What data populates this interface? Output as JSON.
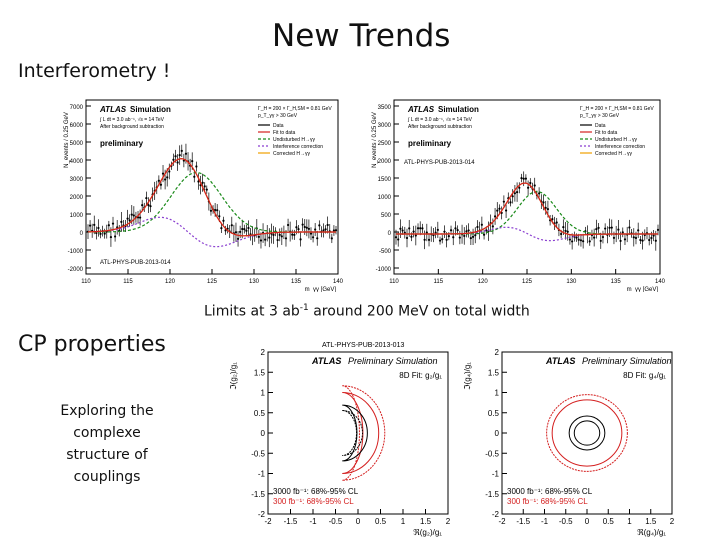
{
  "slide": {
    "title": "New Trends",
    "section1": "Interferometry !",
    "section2": "CP properties",
    "explore_lines": [
      "Exploring the",
      "complexe",
      "structure of",
      "couplings"
    ],
    "limits_pre": "Limits at 3 ab",
    "limits_sup": "-1",
    "limits_post": " around 200 MeV on total width"
  },
  "plots": {
    "common": {
      "atlas": "ATLAS",
      "simulation": "Simulation",
      "after_bg": "After background subtraction",
      "lumi": "∫ L dt = 3.0 ab⁻¹, √s = 14 TeV",
      "xlabel": "m_γγ [GeV]",
      "ylabel": "N_events / 0.25 GeV",
      "legend": [
        "Data",
        "Fit to data",
        "Undisturbed H→γγ",
        "Interference correction",
        "Corrected H→γγ"
      ]
    },
    "left": {
      "width_line": "Γ_H = 200 × Γ_H,SM = 0.81 GeV",
      "pt_line": "p_T_γγ > 30 GeV",
      "preliminary": "preliminary",
      "pub": "ATL-PHYS-PUB-2013-014",
      "yticks": [
        "7000",
        "6000",
        "5000",
        "4000",
        "3000",
        "2000",
        "1000",
        "0",
        "-1000",
        "-2000"
      ],
      "xticks": [
        "110",
        "115",
        "120",
        "125",
        "130",
        "135",
        "140"
      ]
    },
    "right": {
      "width_line": "Γ_H = 200 × Γ_H,SM = 0.81 GeV",
      "pt_line": "p_T_γγ > 30 GeV",
      "preliminary": "preliminary",
      "pub": "ATL-PHYS-PUB-2013-014",
      "yticks": [
        "3500",
        "3000",
        "2500",
        "2000",
        "1500",
        "1000",
        "500",
        "0",
        "-500",
        "-1000"
      ],
      "xticks": [
        "110",
        "115",
        "120",
        "125",
        "130",
        "135",
        "140"
      ]
    },
    "cp_left": {
      "header": "ATL-PHYS-PUB-2013-013",
      "atlas": "ATLAS",
      "sub": "Preliminary Simulation",
      "fit": "8D Fit: g₂/g₁",
      "ylabel": "ℑ(g₂)/g₁",
      "xlabel": "ℜ(g₂)/g₁",
      "leg1": "3000 fb⁻¹: 68%-95% CL",
      "leg2": "300 fb⁻¹: 68%-95% CL",
      "ticks": [
        "2",
        "1.5",
        "1",
        "0.5",
        "0",
        "-0.5",
        "-1",
        "-1.5",
        "-2"
      ],
      "xticks": [
        "-2",
        "-1.5",
        "-1",
        "-0.5",
        "0",
        "0.5",
        "1",
        "1.5",
        "2"
      ]
    },
    "cp_right": {
      "atlas": "ATLAS",
      "sub": "Preliminary Simulation",
      "fit": "8D Fit: g₄/g₁",
      "ylabel": "ℑ(g₄)/g₁",
      "xlabel": "ℜ(g₄)/g₁",
      "leg1": "3000 fb⁻¹: 68%-95% CL",
      "leg2": "300 fb⁻¹: 68%-95% CL",
      "ticks": [
        "2",
        "1.5",
        "1",
        "0.5",
        "0",
        "-0.5",
        "-1",
        "-1.5",
        "-2"
      ],
      "xticks": [
        "-2",
        "-1.5",
        "-1",
        "-0.5",
        "0",
        "0.5",
        "1",
        "1.5",
        "2"
      ]
    }
  },
  "colors": {
    "data": "#000000",
    "fit": "#d41f1f",
    "undisturbed": "#1a8a1a",
    "interference": "#8a3fd0",
    "corrected": "#f0a000",
    "cl300": "#d41f1f",
    "cl3000": "#000000"
  }
}
